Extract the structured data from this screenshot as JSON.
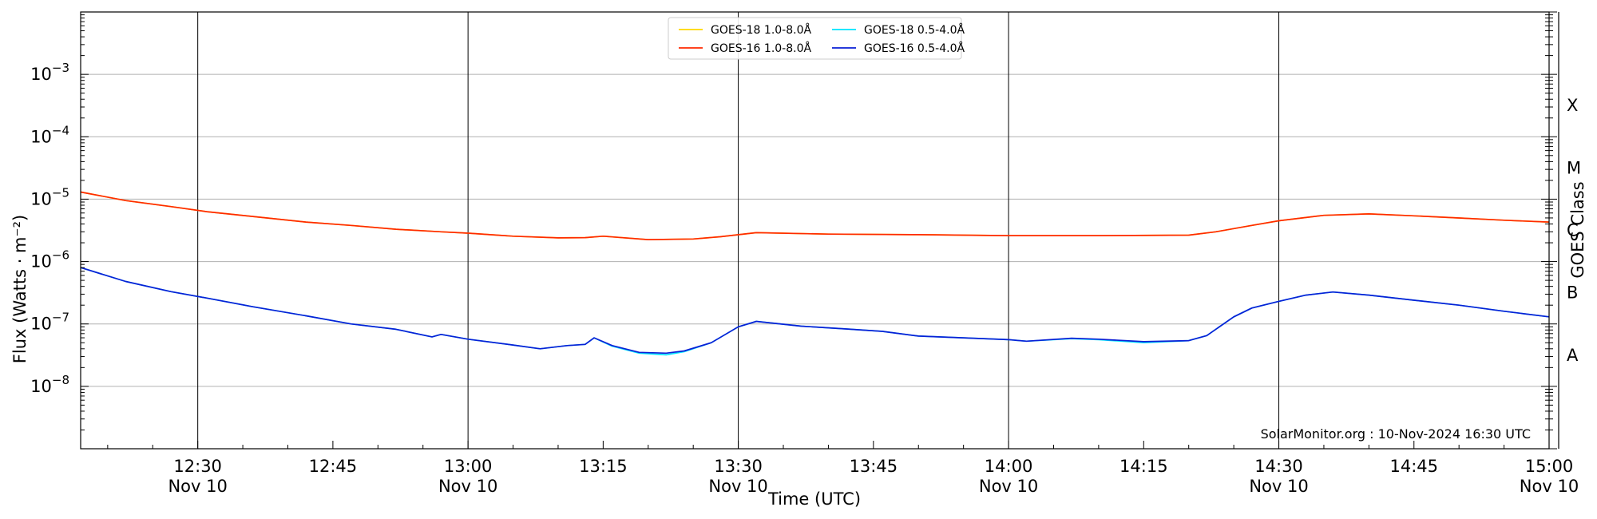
{
  "chart_data": {
    "type": "line",
    "xlabel": "Time (UTC)",
    "ylabel": "Flux (Watts · m⁻²)",
    "y2label": "GOES Class",
    "y_scale": "log",
    "xlim": [
      "2024-11-10 12:17",
      "2024-11-10 15:00"
    ],
    "ylim": [
      1e-09,
      0.01
    ],
    "grid": "horizontal gridlines at decades, vertical lines at half-hours",
    "legend_position": "top-center",
    "credit": "SolarMonitor.org : 10-Nov-2024 16:30 UTC",
    "x_ticks": [
      {
        "time": "12:30",
        "top": "12:30",
        "bottom": "Nov 10"
      },
      {
        "time": "12:45",
        "top": "12:45",
        "bottom": ""
      },
      {
        "time": "13:00",
        "top": "13:00",
        "bottom": "Nov 10"
      },
      {
        "time": "13:15",
        "top": "13:15",
        "bottom": ""
      },
      {
        "time": "13:30",
        "top": "13:30",
        "bottom": "Nov 10"
      },
      {
        "time": "13:45",
        "top": "13:45",
        "bottom": ""
      },
      {
        "time": "14:00",
        "top": "14:00",
        "bottom": "Nov 10"
      },
      {
        "time": "14:15",
        "top": "14:15",
        "bottom": ""
      },
      {
        "time": "14:30",
        "top": "14:30",
        "bottom": "Nov 10"
      },
      {
        "time": "14:45",
        "top": "14:45",
        "bottom": ""
      },
      {
        "time": "15:00",
        "top": "15:00",
        "bottom": "Nov 10"
      }
    ],
    "y_ticks": [
      {
        "value": 1e-08,
        "label_base": "10",
        "label_exp": "−8"
      },
      {
        "value": 1e-07,
        "label_base": "10",
        "label_exp": "−7"
      },
      {
        "value": 1e-06,
        "label_base": "10",
        "label_exp": "−6"
      },
      {
        "value": 1e-05,
        "label_base": "10",
        "label_exp": "−5"
      },
      {
        "value": 0.0001,
        "label_base": "10",
        "label_exp": "−4"
      },
      {
        "value": 0.001,
        "label_base": "10",
        "label_exp": "−3"
      }
    ],
    "goes_classes": [
      {
        "label": "A",
        "flux": 1e-08
      },
      {
        "label": "B",
        "flux": 1e-07
      },
      {
        "label": "C",
        "flux": 1e-06
      },
      {
        "label": "M",
        "flux": 1e-05
      },
      {
        "label": "X",
        "flux": 0.0001
      }
    ],
    "series": [
      {
        "name": "GOES-18 1.0-8.0Å",
        "color": "#ffd700",
        "points": [
          [
            "12:17",
            1.3e-05
          ],
          [
            "12:22",
            9.5e-06
          ],
          [
            "12:27",
            7.6e-06
          ],
          [
            "12:31",
            6.3e-06
          ],
          [
            "12:36",
            5.3e-06
          ],
          [
            "12:42",
            4.3e-06
          ],
          [
            "12:47",
            3.8e-06
          ],
          [
            "12:52",
            3.3e-06
          ],
          [
            "12:57",
            3e-06
          ],
          [
            "13:00",
            2.85e-06
          ],
          [
            "13:05",
            2.55e-06
          ],
          [
            "13:10",
            2.4e-06
          ],
          [
            "13:13",
            2.42e-06
          ],
          [
            "13:15",
            2.55e-06
          ],
          [
            "13:20",
            2.25e-06
          ],
          [
            "13:25",
            2.3e-06
          ],
          [
            "13:28",
            2.5e-06
          ],
          [
            "13:32",
            2.9e-06
          ],
          [
            "13:40",
            2.75e-06
          ],
          [
            "13:50",
            2.7e-06
          ],
          [
            "14:00",
            2.6e-06
          ],
          [
            "14:10",
            2.6e-06
          ],
          [
            "14:20",
            2.65e-06
          ],
          [
            "14:23",
            3e-06
          ],
          [
            "14:27",
            3.8e-06
          ],
          [
            "14:30",
            4.5e-06
          ],
          [
            "14:35",
            5.5e-06
          ],
          [
            "14:40",
            5.8e-06
          ],
          [
            "14:45",
            5.4e-06
          ],
          [
            "14:50",
            5e-06
          ],
          [
            "14:55",
            4.6e-06
          ],
          [
            "15:00",
            4.3e-06
          ]
        ]
      },
      {
        "name": "GOES-16 1.0-8.0Å",
        "color": "#ff2a00",
        "points": [
          [
            "12:17",
            1.3e-05
          ],
          [
            "12:22",
            9.5e-06
          ],
          [
            "12:27",
            7.6e-06
          ],
          [
            "12:31",
            6.3e-06
          ],
          [
            "12:36",
            5.3e-06
          ],
          [
            "12:42",
            4.3e-06
          ],
          [
            "12:47",
            3.8e-06
          ],
          [
            "12:52",
            3.3e-06
          ],
          [
            "12:57",
            3e-06
          ],
          [
            "13:00",
            2.85e-06
          ],
          [
            "13:05",
            2.55e-06
          ],
          [
            "13:10",
            2.4e-06
          ],
          [
            "13:13",
            2.42e-06
          ],
          [
            "13:15",
            2.55e-06
          ],
          [
            "13:20",
            2.25e-06
          ],
          [
            "13:25",
            2.3e-06
          ],
          [
            "13:28",
            2.5e-06
          ],
          [
            "13:32",
            2.9e-06
          ],
          [
            "13:40",
            2.75e-06
          ],
          [
            "13:50",
            2.7e-06
          ],
          [
            "14:00",
            2.6e-06
          ],
          [
            "14:10",
            2.6e-06
          ],
          [
            "14:20",
            2.65e-06
          ],
          [
            "14:23",
            3e-06
          ],
          [
            "14:27",
            3.8e-06
          ],
          [
            "14:30",
            4.5e-06
          ],
          [
            "14:35",
            5.5e-06
          ],
          [
            "14:40",
            5.8e-06
          ],
          [
            "14:45",
            5.4e-06
          ],
          [
            "14:50",
            5e-06
          ],
          [
            "14:55",
            4.6e-06
          ],
          [
            "15:00",
            4.3e-06
          ]
        ]
      },
      {
        "name": "GOES-18 0.5-4.0Å",
        "color": "#00e5ff",
        "points": [
          [
            "12:17",
            8e-07
          ],
          [
            "12:22",
            4.8e-07
          ],
          [
            "12:27",
            3.3e-07
          ],
          [
            "12:31",
            2.6e-07
          ],
          [
            "12:36",
            1.9e-07
          ],
          [
            "12:42",
            1.35e-07
          ],
          [
            "12:47",
            1e-07
          ],
          [
            "12:52",
            8.2e-08
          ],
          [
            "12:56",
            6.2e-08
          ],
          [
            "12:57",
            6.8e-08
          ],
          [
            "13:00",
            5.7e-08
          ],
          [
            "13:05",
            4.6e-08
          ],
          [
            "13:08",
            4e-08
          ],
          [
            "13:11",
            4.5e-08
          ],
          [
            "13:13",
            4.7e-08
          ],
          [
            "13:14",
            6e-08
          ],
          [
            "13:16",
            4.4e-08
          ],
          [
            "13:19",
            3.4e-08
          ],
          [
            "13:22",
            3.2e-08
          ],
          [
            "13:24",
            3.6e-08
          ],
          [
            "13:27",
            5e-08
          ],
          [
            "13:30",
            9e-08
          ],
          [
            "13:32",
            1.1e-07
          ],
          [
            "13:37",
            9.2e-08
          ],
          [
            "13:42",
            8.3e-08
          ],
          [
            "13:46",
            7.6e-08
          ],
          [
            "13:50",
            6.4e-08
          ],
          [
            "13:55",
            6e-08
          ],
          [
            "14:00",
            5.6e-08
          ],
          [
            "14:02",
            5.3e-08
          ],
          [
            "14:07",
            5.8e-08
          ],
          [
            "14:10",
            5.6e-08
          ],
          [
            "14:15",
            5e-08
          ],
          [
            "14:20",
            5.4e-08
          ],
          [
            "14:22",
            6.5e-08
          ],
          [
            "14:25",
            1.3e-07
          ],
          [
            "14:27",
            1.8e-07
          ],
          [
            "14:30",
            2.3e-07
          ],
          [
            "14:33",
            2.9e-07
          ],
          [
            "14:36",
            3.25e-07
          ],
          [
            "14:40",
            2.9e-07
          ],
          [
            "14:45",
            2.4e-07
          ],
          [
            "14:50",
            2e-07
          ],
          [
            "14:55",
            1.6e-07
          ],
          [
            "15:00",
            1.3e-07
          ]
        ]
      },
      {
        "name": "GOES-16 0.5-4.0Å",
        "color": "#0a1fd6",
        "points": [
          [
            "12:17",
            8e-07
          ],
          [
            "12:22",
            4.8e-07
          ],
          [
            "12:27",
            3.3e-07
          ],
          [
            "12:31",
            2.6e-07
          ],
          [
            "12:36",
            1.9e-07
          ],
          [
            "12:42",
            1.35e-07
          ],
          [
            "12:47",
            1e-07
          ],
          [
            "12:52",
            8.2e-08
          ],
          [
            "12:56",
            6.2e-08
          ],
          [
            "12:57",
            6.8e-08
          ],
          [
            "13:00",
            5.7e-08
          ],
          [
            "13:05",
            4.6e-08
          ],
          [
            "13:08",
            4e-08
          ],
          [
            "13:11",
            4.5e-08
          ],
          [
            "13:13",
            4.7e-08
          ],
          [
            "13:14",
            6e-08
          ],
          [
            "13:16",
            4.5e-08
          ],
          [
            "13:19",
            3.5e-08
          ],
          [
            "13:22",
            3.4e-08
          ],
          [
            "13:24",
            3.7e-08
          ],
          [
            "13:27",
            5e-08
          ],
          [
            "13:30",
            9e-08
          ],
          [
            "13:32",
            1.1e-07
          ],
          [
            "13:37",
            9.2e-08
          ],
          [
            "13:42",
            8.3e-08
          ],
          [
            "13:46",
            7.6e-08
          ],
          [
            "13:50",
            6.4e-08
          ],
          [
            "13:55",
            6e-08
          ],
          [
            "14:00",
            5.6e-08
          ],
          [
            "14:02",
            5.3e-08
          ],
          [
            "14:07",
            5.9e-08
          ],
          [
            "14:10",
            5.7e-08
          ],
          [
            "14:15",
            5.2e-08
          ],
          [
            "14:20",
            5.4e-08
          ],
          [
            "14:22",
            6.5e-08
          ],
          [
            "14:25",
            1.3e-07
          ],
          [
            "14:27",
            1.8e-07
          ],
          [
            "14:30",
            2.3e-07
          ],
          [
            "14:33",
            2.9e-07
          ],
          [
            "14:36",
            3.25e-07
          ],
          [
            "14:40",
            2.9e-07
          ],
          [
            "14:45",
            2.4e-07
          ],
          [
            "14:50",
            2e-07
          ],
          [
            "14:55",
            1.6e-07
          ],
          [
            "15:00",
            1.3e-07
          ]
        ]
      }
    ]
  }
}
